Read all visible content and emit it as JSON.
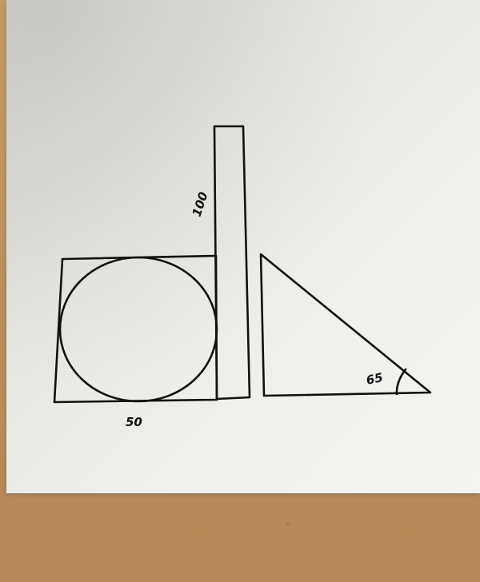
{
  "scene": {
    "description_free": true,
    "labels": {
      "tall_rect_length": "100",
      "square_side": "50",
      "triangle_angle": "65"
    },
    "colors": {
      "ink": "#111111",
      "paper": "#f0efeb",
      "desk": "#b98e5c"
    }
  }
}
